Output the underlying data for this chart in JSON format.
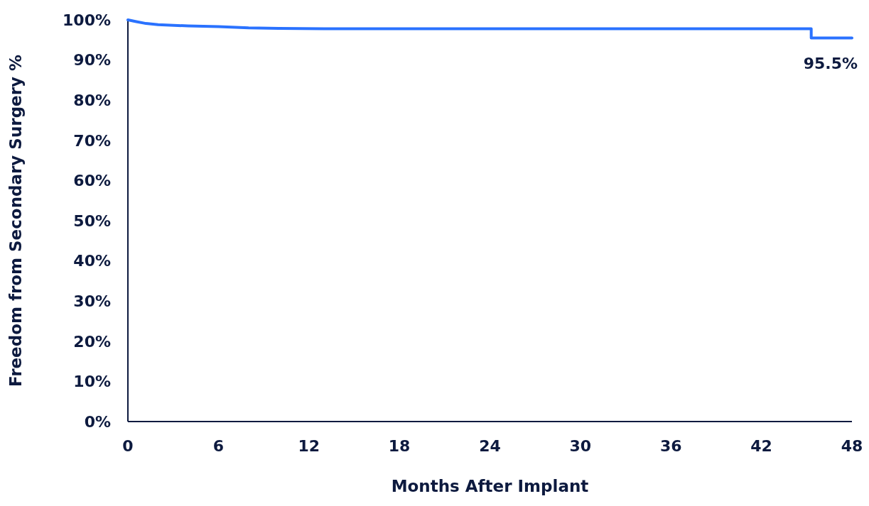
{
  "chart_data": {
    "type": "line",
    "xlabel": "Months After Implant",
    "ylabel": "Freedom from Secondary Surgery %",
    "x": [
      0,
      0.5,
      1.2,
      2,
      4,
      6,
      8,
      10,
      13,
      45.3,
      45.3,
      48
    ],
    "series": [
      {
        "color": "#2a72ff",
        "values": [
          100,
          99.6,
          99.1,
          98.8,
          98.5,
          98.3,
          98.0,
          97.9,
          97.8,
          97.8,
          95.5,
          95.5
        ]
      }
    ],
    "xlim": [
      0,
      48
    ],
    "xticks": [
      0,
      6,
      12,
      18,
      24,
      30,
      36,
      42,
      48
    ],
    "ylim": [
      0,
      100
    ],
    "yticks": [
      {
        "value": 0,
        "label": "0%"
      },
      {
        "value": 10,
        "label": "10%"
      },
      {
        "value": 20,
        "label": "20%"
      },
      {
        "value": 30,
        "label": "30%"
      },
      {
        "value": 40,
        "label": "40%"
      },
      {
        "value": 50,
        "label": "50%"
      },
      {
        "value": 60,
        "label": "60%"
      },
      {
        "value": 70,
        "label": "70%"
      },
      {
        "value": 80,
        "label": "80%"
      },
      {
        "value": 90,
        "label": "90%"
      },
      {
        "value": 100,
        "label": "100%"
      }
    ],
    "annotations": [
      {
        "text": "95.5%",
        "x": 48,
        "y": 95.5
      }
    ],
    "grid": false
  }
}
